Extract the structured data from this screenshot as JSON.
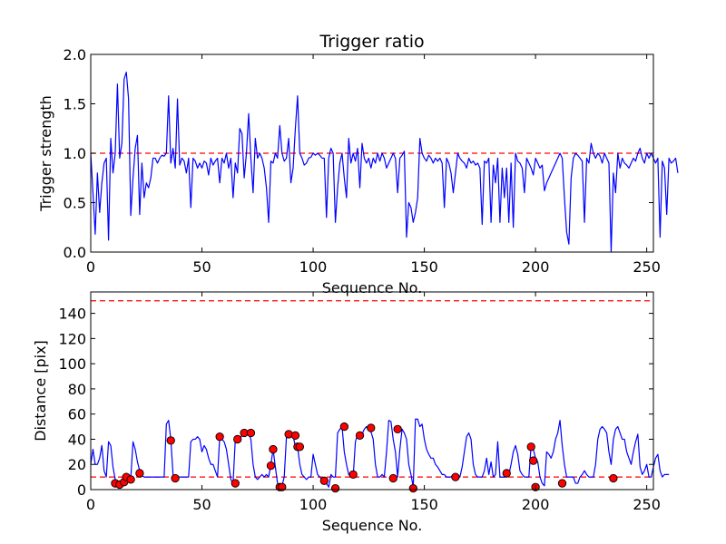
{
  "figure": {
    "background": "#ffffff"
  },
  "colors": {
    "series": "#0000ff",
    "threshold": "#ff0000",
    "marker": "#ff0000",
    "axis": "#000000"
  },
  "chart_data": [
    {
      "type": "line",
      "title": "Trigger ratio",
      "xlabel": "Sequence No.",
      "ylabel": "Trigger strength",
      "xlim": [
        0,
        253
      ],
      "ylim": [
        0,
        2.0
      ],
      "xticks": [
        0,
        50,
        100,
        150,
        200,
        250
      ],
      "yticks": [
        0.0,
        0.5,
        1.0,
        1.5,
        2.0
      ],
      "ytick_labels": [
        "0.0",
        "0.5",
        "1.0",
        "1.5",
        "2.0"
      ],
      "grid": false,
      "threshold": 1.0,
      "series": [
        {
          "name": "Trigger strength",
          "x_start": 0,
          "values": [
            1.0,
            0.6,
            0.18,
            0.8,
            0.4,
            0.7,
            0.9,
            0.95,
            0.12,
            1.15,
            0.8,
            1.0,
            1.7,
            0.95,
            1.1,
            1.75,
            1.82,
            1.55,
            0.37,
            0.75,
            1.05,
            1.18,
            0.38,
            0.9,
            0.55,
            0.7,
            0.65,
            0.75,
            0.95,
            0.95,
            0.9,
            0.95,
            0.98,
            0.97,
            1.0,
            1.58,
            0.9,
            1.05,
            0.85,
            1.55,
            0.88,
            0.95,
            0.92,
            0.8,
            0.95,
            0.45,
            0.95,
            0.92,
            0.85,
            0.9,
            0.85,
            0.92,
            0.9,
            0.78,
            0.95,
            0.88,
            0.92,
            0.95,
            0.7,
            0.95,
            0.9,
            1.0,
            0.85,
            0.95,
            0.55,
            0.9,
            0.8,
            1.25,
            1.2,
            0.75,
            1.0,
            1.4,
            0.95,
            0.6,
            1.15,
            0.95,
            1.0,
            0.95,
            0.85,
            0.65,
            0.3,
            0.92,
            0.9,
            1.0,
            0.95,
            1.28,
            1.0,
            0.92,
            0.95,
            1.15,
            0.7,
            0.85,
            1.25,
            1.58,
            1.0,
            0.95,
            0.88,
            0.9,
            0.95,
            0.96,
            1.0,
            0.98,
            1.0,
            0.98,
            0.95,
            0.95,
            0.35,
            0.95,
            1.05,
            1.0,
            0.3,
            0.65,
            0.9,
            1.0,
            0.75,
            0.55,
            1.15,
            0.9,
            1.0,
            0.92,
            1.05,
            0.65,
            1.1,
            0.95,
            0.9,
            0.95,
            0.85,
            0.95,
            0.9,
            1.0,
            0.92,
            1.0,
            0.95,
            0.85,
            0.9,
            0.95,
            1.0,
            0.95,
            0.6,
            0.95,
            0.98,
            1.02,
            0.15,
            0.5,
            0.45,
            0.3,
            0.4,
            0.55,
            1.15,
            1.0,
            0.95,
            0.92,
            0.98,
            0.95,
            0.9,
            0.95,
            0.92,
            0.95,
            0.9,
            0.45,
            0.95,
            0.9,
            0.8,
            0.6,
            0.8,
            1.0,
            0.95,
            0.92,
            0.9,
            0.85,
            0.95,
            0.9,
            0.92,
            0.88,
            0.9,
            0.85,
            0.28,
            0.92,
            0.9,
            0.95,
            0.3,
            0.88,
            0.7,
            0.95,
            0.3,
            0.85,
            0.55,
            0.85,
            0.3,
            0.9,
            0.25,
            1.0,
            0.92,
            0.9,
            0.85,
            0.6,
            0.95,
            0.9,
            0.85,
            0.78,
            0.95,
            0.9,
            0.85,
            0.88,
            0.62,
            0.7,
            0.75,
            0.8,
            0.85,
            0.9,
            0.95,
            1.0,
            0.95,
            0.55,
            0.2,
            0.08,
            0.75,
            0.95,
            1.0,
            0.98,
            0.95,
            0.92,
            0.3,
            0.95,
            0.9,
            1.1,
            1.0,
            0.95,
            1.0,
            0.97,
            0.9,
            1.0,
            0.95,
            0.9,
            0.0,
            0.8,
            0.6,
            1.0,
            0.85,
            0.95,
            0.9,
            0.88,
            0.85,
            0.9,
            0.95,
            0.92,
            1.0,
            1.05,
            0.95,
            0.9,
            1.0,
            0.95,
            1.0,
            0.95,
            0.9,
            0.95,
            0.15,
            0.92,
            0.85,
            0.38,
            0.95,
            0.9,
            0.92,
            0.95,
            0.8
          ]
        }
      ]
    },
    {
      "type": "line",
      "title": "",
      "xlabel": "Sequence No.",
      "ylabel": "Distance [pix]",
      "xlim": [
        0,
        253
      ],
      "ylim": [
        0,
        157
      ],
      "xticks": [
        0,
        50,
        100,
        150,
        200,
        250
      ],
      "yticks": [
        0,
        20,
        40,
        60,
        80,
        100,
        120,
        140
      ],
      "grid": false,
      "thresholds": [
        10,
        150
      ],
      "series": [
        {
          "name": "Distance",
          "x_start": 0,
          "values": [
            20,
            32,
            20,
            20,
            25,
            35,
            15,
            10,
            38,
            35,
            18,
            8,
            5,
            4,
            6,
            8,
            10,
            12,
            9,
            38,
            32,
            22,
            15,
            11,
            10,
            10,
            10,
            10,
            10,
            10,
            10,
            10,
            10,
            10,
            52,
            55,
            40,
            12,
            10,
            10,
            10,
            10,
            10,
            10,
            10,
            38,
            40,
            40,
            42,
            40,
            30,
            35,
            32,
            25,
            20,
            20,
            15,
            10,
            42,
            40,
            38,
            32,
            20,
            8,
            5,
            40,
            42,
            38,
            44,
            46,
            44,
            45,
            40,
            20,
            10,
            8,
            10,
            12,
            10,
            12,
            10,
            20,
            32,
            18,
            5,
            3,
            3,
            10,
            42,
            45,
            44,
            43,
            34,
            34,
            20,
            12,
            10,
            8,
            10,
            10,
            28,
            20,
            12,
            10,
            8,
            8,
            5,
            2,
            12,
            10,
            10,
            45,
            48,
            50,
            30,
            20,
            12,
            10,
            10,
            38,
            44,
            45,
            44,
            48,
            50,
            48,
            46,
            40,
            20,
            10,
            10,
            12,
            10,
            30,
            55,
            54,
            40,
            30,
            10,
            32,
            48,
            45,
            40,
            20,
            12,
            2,
            56,
            56,
            50,
            52,
            40,
            32,
            28,
            25,
            25,
            20,
            18,
            15,
            12,
            12,
            10,
            10,
            10,
            12,
            11,
            10,
            10,
            18,
            30,
            42,
            45,
            40,
            20,
            12,
            10,
            10,
            10,
            15,
            25,
            12,
            22,
            10,
            12,
            38,
            10,
            10,
            10,
            10,
            12,
            20,
            30,
            35,
            28,
            15,
            12,
            10,
            10,
            10,
            35,
            32,
            25,
            22,
            10,
            5,
            3,
            30,
            28,
            25,
            30,
            40,
            45,
            55,
            35,
            20,
            10,
            10,
            10,
            10,
            5,
            5,
            10,
            12,
            15,
            12,
            10,
            10,
            10,
            20,
            40,
            48,
            50,
            48,
            45,
            30,
            20,
            40,
            48,
            50,
            45,
            40,
            40,
            30,
            25,
            20,
            30,
            38,
            44,
            18,
            12,
            15,
            20,
            10,
            10,
            18,
            25,
            28,
            15,
            10,
            12,
            12,
            12
          ]
        }
      ],
      "markers": [
        {
          "x": 11,
          "y": 5
        },
        {
          "x": 13,
          "y": 4
        },
        {
          "x": 15,
          "y": 6
        },
        {
          "x": 16,
          "y": 10
        },
        {
          "x": 18,
          "y": 8
        },
        {
          "x": 22,
          "y": 13
        },
        {
          "x": 36,
          "y": 39
        },
        {
          "x": 38,
          "y": 9
        },
        {
          "x": 58,
          "y": 42
        },
        {
          "x": 65,
          "y": 5
        },
        {
          "x": 66,
          "y": 40
        },
        {
          "x": 69,
          "y": 45
        },
        {
          "x": 72,
          "y": 45
        },
        {
          "x": 81,
          "y": 19
        },
        {
          "x": 82,
          "y": 32
        },
        {
          "x": 85,
          "y": 2
        },
        {
          "x": 86,
          "y": 2
        },
        {
          "x": 89,
          "y": 44
        },
        {
          "x": 92,
          "y": 43
        },
        {
          "x": 93,
          "y": 34
        },
        {
          "x": 94,
          "y": 34
        },
        {
          "x": 105,
          "y": 7
        },
        {
          "x": 110,
          "y": 1
        },
        {
          "x": 114,
          "y": 50
        },
        {
          "x": 118,
          "y": 12
        },
        {
          "x": 121,
          "y": 43
        },
        {
          "x": 126,
          "y": 49
        },
        {
          "x": 136,
          "y": 9
        },
        {
          "x": 138,
          "y": 48
        },
        {
          "x": 145,
          "y": 1
        },
        {
          "x": 164,
          "y": 10
        },
        {
          "x": 187,
          "y": 13
        },
        {
          "x": 198,
          "y": 34
        },
        {
          "x": 199,
          "y": 23
        },
        {
          "x": 200,
          "y": 2
        },
        {
          "x": 212,
          "y": 5
        },
        {
          "x": 235,
          "y": 9
        }
      ]
    }
  ]
}
